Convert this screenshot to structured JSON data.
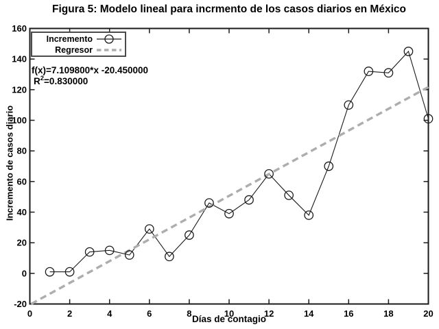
{
  "figure_title": "Figura 5: Modelo lineal para incrmento de los casos diarios en México",
  "chart_data": {
    "type": "line",
    "title": "Figura 5: Modelo lineal para incrmento de los casos diarios en México",
    "xlabel": "Días de contagio",
    "ylabel": "Incremento de casos diario",
    "xlim": [
      0,
      20
    ],
    "ylim": [
      -20,
      160
    ],
    "xticks": [
      0,
      2,
      4,
      6,
      8,
      10,
      12,
      14,
      16,
      18,
      20
    ],
    "yticks": [
      -20,
      0,
      20,
      40,
      60,
      80,
      100,
      120,
      140,
      160
    ],
    "grid": false,
    "legend_position": "top-left",
    "series": [
      {
        "name": "Incremento",
        "type": "line",
        "marker": "circle",
        "marker_fill": "none",
        "color": "#1a1a1a",
        "x": [
          1,
          2,
          3,
          4,
          5,
          6,
          7,
          8,
          9,
          10,
          11,
          12,
          13,
          14,
          15,
          16,
          17,
          18,
          19,
          20
        ],
        "values": [
          1,
          1,
          14,
          15,
          12,
          29,
          11,
          25,
          46,
          39,
          48,
          65,
          51,
          38,
          70,
          110,
          132,
          131,
          145,
          101
        ]
      },
      {
        "name": "Regresor",
        "type": "line",
        "style": "dashed",
        "color": "#adadad",
        "equation": {
          "slope": 7.1098,
          "intercept": -20.45
        },
        "x_start": 0.063,
        "x_end": 20
      }
    ],
    "annotation": {
      "line1": "f(x)=7.109800*x -20.450000",
      "line2_base": "R",
      "line2_sup": "2",
      "line2_rest": "=0.830000"
    }
  },
  "colors": {
    "background": "#ffffff",
    "axis": "#1a1a1a",
    "data_line": "#1a1a1a",
    "regressor_line": "#adadad",
    "legend_border": "#4a4a4a",
    "text": "#000000"
  }
}
